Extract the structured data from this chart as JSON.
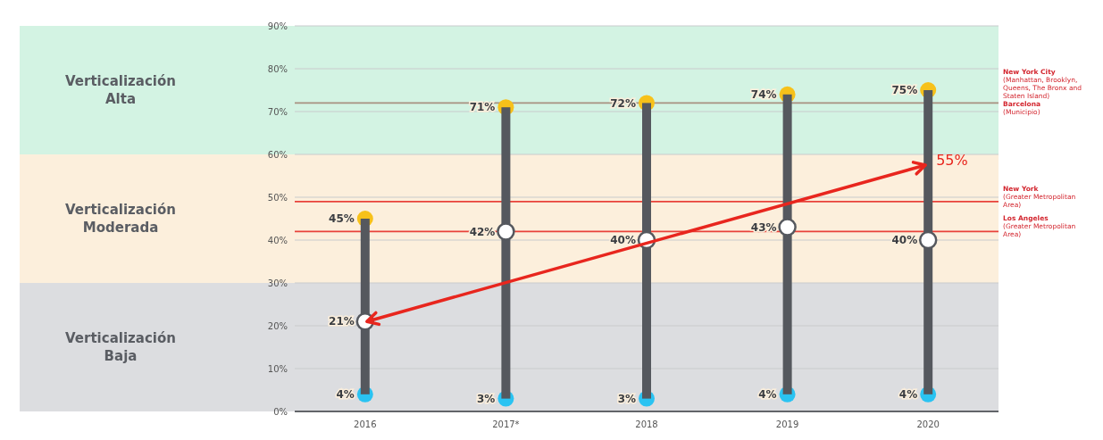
{
  "chart_data": {
    "type": "bar",
    "categories": [
      "2016",
      "2017*",
      "2018",
      "2019",
      "2020"
    ],
    "series": [
      {
        "type": "scatter",
        "color": "#2ac3f2",
        "values": [
          4,
          3,
          3,
          4,
          4
        ],
        "value_labels": [
          "4%",
          "3%",
          "3%",
          "4%",
          "4%"
        ]
      },
      {
        "type": "scatter",
        "color": "#f7c11a",
        "values": [
          45,
          71,
          72,
          74,
          75
        ],
        "value_labels": [
          "45%",
          "71%",
          "72%",
          "74%",
          "75%"
        ]
      },
      {
        "color": "#55585e",
        "base": [
          4,
          3,
          3,
          4,
          4
        ],
        "values": [
          41,
          68,
          69,
          70,
          71
        ]
      },
      {
        "type": "scatter",
        "color": "#ffffff",
        "values": [
          21,
          42,
          40,
          43,
          40
        ],
        "value_labels": [
          "21%",
          "42%",
          "40%",
          "43%",
          "40%"
        ]
      }
    ],
    "ylim": [
      0,
      90
    ],
    "yticks": [
      {
        "value": 0,
        "label": "0%"
      },
      {
        "value": 10,
        "label": "10%"
      },
      {
        "value": 20,
        "label": "20%"
      },
      {
        "value": 30,
        "label": "30%"
      },
      {
        "value": 40,
        "label": "40%"
      },
      {
        "value": 50,
        "label": "50%"
      },
      {
        "value": 60,
        "label": "60%"
      },
      {
        "value": 70,
        "label": "70%"
      },
      {
        "value": 80,
        "label": "80%"
      },
      {
        "value": 90,
        "label": "90%"
      }
    ],
    "grid": "y",
    "marker": "circle",
    "bands": [
      {
        "axis": "y",
        "from": 0,
        "to": 30,
        "label": "Verticalización\nBaja",
        "color": "#dcdde0"
      },
      {
        "axis": "y",
        "from": 30,
        "to": 60,
        "label": "Verticalización\nModerada",
        "color": "#fcefdc"
      },
      {
        "axis": "y",
        "from": 60,
        "to": 90,
        "label": "Verticalización\nAlta",
        "color": "#d3f3e3"
      }
    ],
    "ref_lines": [
      {
        "axis": "y",
        "value": 72,
        "label": "New York City\n(Manhattan, Brooklyn, Queens, The Bronx and Staten Island)\nBarcelona\n(Municipio)",
        "color": "#a89080"
      },
      {
        "axis": "y",
        "value": 49,
        "label": "New York\n(Greater Metropolitan Area)",
        "color": "#e8423a"
      },
      {
        "axis": "y",
        "value": 42,
        "label": "Los Angeles\n(Greater Metropolitan Area)",
        "color": "#e8423a"
      }
    ],
    "annotations": [
      "55%"
    ]
  }
}
